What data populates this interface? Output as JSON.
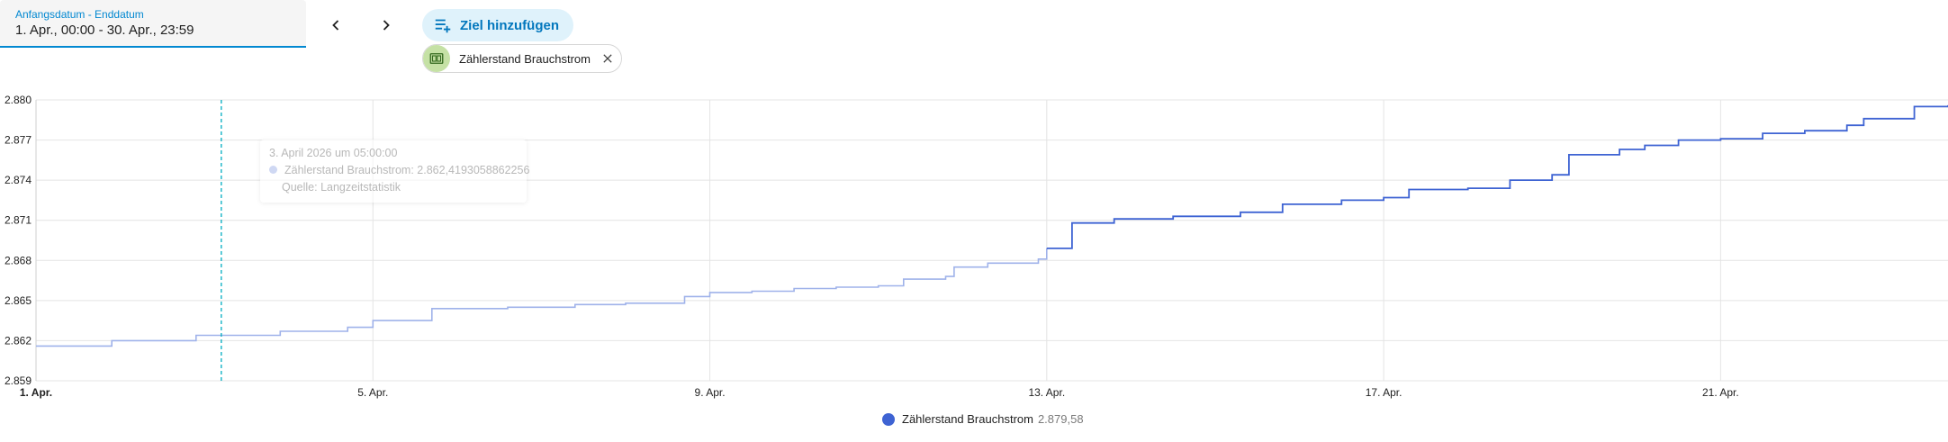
{
  "date_range": {
    "label": "Anfangsdatum - Enddatum",
    "value": "1. Apr., 00:00 - 30. Apr., 23:59"
  },
  "nav": {
    "prev_icon": "chevron-left-icon",
    "next_icon": "chevron-right-icon"
  },
  "add_target": {
    "label": "Ziel hinzufügen",
    "icon": "playlist-plus-icon"
  },
  "chip": {
    "label": "Zählerstand Brauchstrom",
    "icon": "meter-icon",
    "close_icon": "close-icon"
  },
  "tooltip": {
    "time": "3. April 2026 um 05:00:00",
    "series_line": "Zählerstand Brauchstrom: 2.862,4193058862256",
    "source": "Quelle: Langzeitstatistik"
  },
  "legend": {
    "name": "Zählerstand Brauchstrom",
    "value": "2.879,58"
  },
  "colors": {
    "line": "#3e63d3",
    "line_faded": "#9fb2ea",
    "grid": "#e4e4e4",
    "cursor": "#00acc1",
    "accent": "#0288d1"
  },
  "chart_data": {
    "type": "line",
    "step": true,
    "title": "",
    "xlabel": "",
    "ylabel": "",
    "ylim": [
      2859,
      2880
    ],
    "xlim_days": [
      1,
      23.7
    ],
    "x_ticks": [
      {
        "day": 1,
        "label": "1. Apr.",
        "bold": true
      },
      {
        "day": 5,
        "label": "5. Apr."
      },
      {
        "day": 9,
        "label": "9. Apr."
      },
      {
        "day": 13,
        "label": "13. Apr."
      },
      {
        "day": 17,
        "label": "17. Apr."
      },
      {
        "day": 21,
        "label": "21. Apr."
      }
    ],
    "y_ticks": [
      {
        "value": 2859,
        "label": "2.859"
      },
      {
        "value": 2862,
        "label": "2.862"
      },
      {
        "value": 2865,
        "label": "2.865"
      },
      {
        "value": 2868,
        "label": "2.868"
      },
      {
        "value": 2871,
        "label": "2.871"
      },
      {
        "value": 2874,
        "label": "2.874"
      },
      {
        "value": 2877,
        "label": "2.877"
      },
      {
        "value": 2880,
        "label": "2.880"
      }
    ],
    "grid": true,
    "cursor_day": 3.2,
    "highlight_from_day": 13,
    "series": [
      {
        "name": "Zählerstand Brauchstrom",
        "points": [
          [
            1.0,
            2861.6
          ],
          [
            1.9,
            2861.6
          ],
          [
            1.9,
            2862.0
          ],
          [
            2.9,
            2862.0
          ],
          [
            2.9,
            2862.4
          ],
          [
            3.9,
            2862.4
          ],
          [
            3.9,
            2862.7
          ],
          [
            4.6,
            2862.7
          ],
          [
            4.7,
            2863.0
          ],
          [
            5.0,
            2863.5
          ],
          [
            5.7,
            2863.6
          ],
          [
            5.7,
            2864.4
          ],
          [
            6.6,
            2864.5
          ],
          [
            7.4,
            2864.7
          ],
          [
            8.0,
            2864.8
          ],
          [
            8.7,
            2865.3
          ],
          [
            9.0,
            2865.6
          ],
          [
            9.5,
            2865.7
          ],
          [
            10.0,
            2865.9
          ],
          [
            10.5,
            2866.0
          ],
          [
            11.0,
            2866.1
          ],
          [
            11.3,
            2866.6
          ],
          [
            11.8,
            2866.8
          ],
          [
            11.9,
            2867.5
          ],
          [
            12.3,
            2867.8
          ],
          [
            12.9,
            2868.1
          ],
          [
            13.0,
            2868.9
          ],
          [
            13.3,
            2869.1
          ],
          [
            13.3,
            2870.8
          ],
          [
            13.8,
            2871.1
          ],
          [
            14.5,
            2871.3
          ],
          [
            15.3,
            2871.6
          ],
          [
            15.8,
            2872.2
          ],
          [
            16.5,
            2872.5
          ],
          [
            17.0,
            2872.7
          ],
          [
            17.3,
            2873.3
          ],
          [
            18.0,
            2873.4
          ],
          [
            18.5,
            2874.0
          ],
          [
            19.0,
            2874.4
          ],
          [
            19.2,
            2875.9
          ],
          [
            19.8,
            2876.3
          ],
          [
            20.1,
            2876.6
          ],
          [
            20.5,
            2877.0
          ],
          [
            21.0,
            2877.1
          ],
          [
            21.5,
            2877.5
          ],
          [
            22.0,
            2877.7
          ],
          [
            22.5,
            2878.1
          ],
          [
            22.7,
            2878.6
          ],
          [
            23.3,
            2878.8
          ],
          [
            23.3,
            2879.5
          ],
          [
            23.7,
            2879.6
          ]
        ]
      }
    ]
  }
}
